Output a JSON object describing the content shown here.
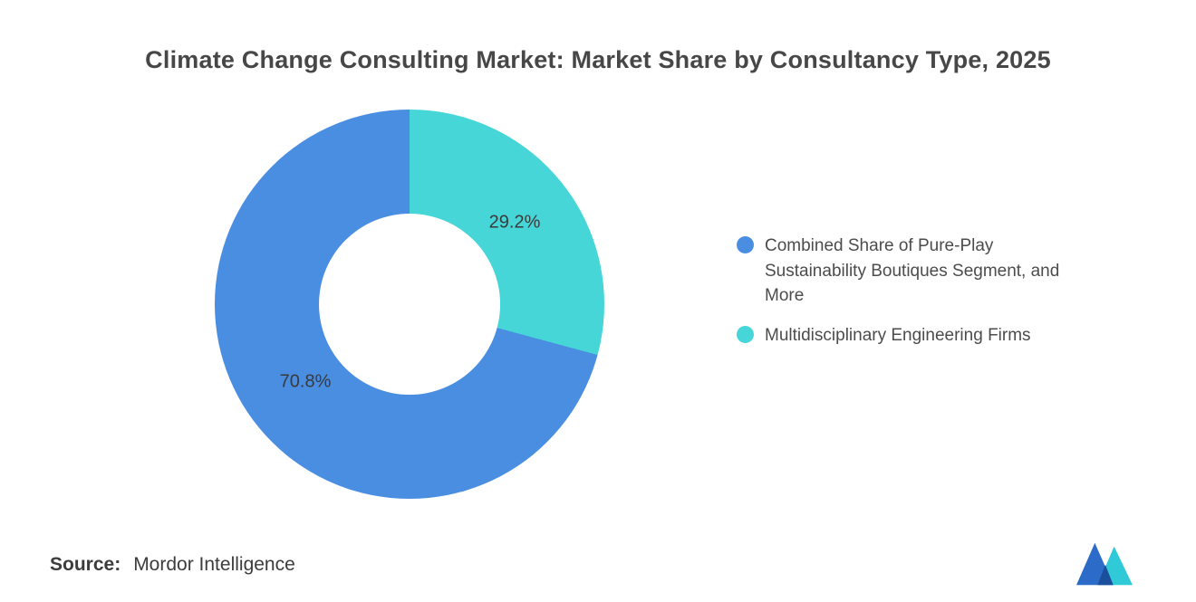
{
  "page": {
    "title": "Climate Change Consulting Market: Market Share by Consultancy Type, 2025",
    "source_label": "Source:",
    "source_value": "Mordor Intelligence"
  },
  "colors": {
    "blue": "#4A8EE2",
    "teal": "#47D6D8",
    "title_text": "#474747",
    "body_text": "#4C4C4C",
    "logo_blue": "#2D6BC9",
    "logo_dark": "#1B4E9B",
    "logo_teal": "#2FC9D8"
  },
  "chart_data": {
    "type": "pie",
    "subtype": "donut",
    "title": "Climate Change Consulting Market: Market Share by Consultancy Type, 2025",
    "unit": "%",
    "segments": [
      {
        "label": "Combined Share of Pure-Play Sustainability Boutiques Segment, and More",
        "value": 70.8,
        "display": "70.8%",
        "color": "#4A8EE2"
      },
      {
        "label": "Multidisciplinary Engineering Firms",
        "value": 29.2,
        "display": "29.2%",
        "color": "#47D6D8"
      }
    ],
    "draw_order_from_top_clockwise": [
      1,
      0
    ],
    "inner_radius_ratio": 0.465,
    "legend_position": "right",
    "source": "Mordor Intelligence"
  }
}
